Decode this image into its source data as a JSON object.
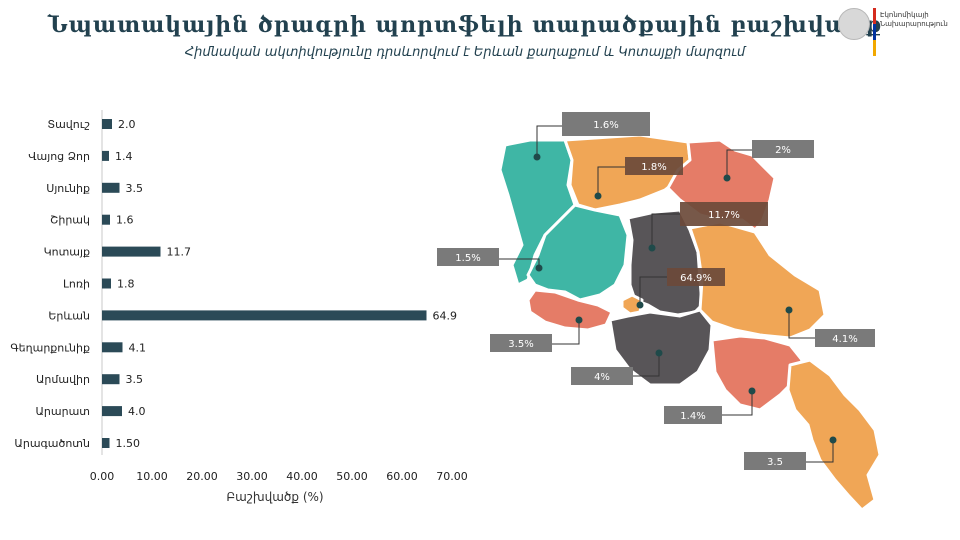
{
  "header": {
    "title": "Նպատակային ծրագրի պորտֆելի տարածքային բաշխվածք",
    "subtitle": "Հիմնական ակտիվությունը դրսևորվում է Երևան քաղաքում և Կոտայքի մարզում"
  },
  "logo": {
    "line1": "Էկոնոմիկայի",
    "line2": "Նախարարություն",
    "colors": [
      "#d52b1e",
      "#0033a0",
      "#f2a800"
    ]
  },
  "chart_data": [
    {
      "type": "bar",
      "orientation": "horizontal",
      "categories": [
        "Տավուշ",
        "Վայոց Ձոր",
        "Սյունիք",
        "Շիրակ",
        "Կոտայք",
        "Լոռի",
        "Երևան",
        "Գեղարքունիք",
        "Արմավիր",
        "Արարատ",
        "Արագածոտն"
      ],
      "values": [
        2.0,
        1.4,
        3.5,
        1.6,
        11.7,
        1.8,
        64.9,
        4.1,
        3.5,
        4.0,
        1.5
      ],
      "value_labels": [
        "2.0",
        "1.4",
        "3.5",
        "1.6",
        "11.7",
        "1.8",
        "64.9",
        "4.1",
        "3.5",
        "4.0",
        "1.50"
      ],
      "xlabel": "Բաշխվածք (%)",
      "xlim": [
        0,
        70
      ],
      "xticks": [
        "0.00",
        "10.00",
        "20.00",
        "30.00",
        "40.00",
        "50.00",
        "60.00",
        "70.00"
      ],
      "grid": false,
      "bar_color": "#2b4a57"
    },
    {
      "type": "map",
      "regions": [
        {
          "name": "Shirak",
          "label": "1.6%",
          "color": "#3fb6a5"
        },
        {
          "name": "Lori",
          "label": "1.8%",
          "color": "#f0a656"
        },
        {
          "name": "Tavush",
          "label": "2%",
          "color": "#e57c67"
        },
        {
          "name": "Kotayk",
          "label": "11.7%",
          "color": "#3fb6a5"
        },
        {
          "name": "Aragatsotn",
          "label": "1.5%",
          "color": "#585558"
        },
        {
          "name": "Yerevan",
          "label": "64.9%",
          "color": "#f0a656"
        },
        {
          "name": "Armavir",
          "label": "3.5%",
          "color": "#e57c67"
        },
        {
          "name": "Gegharkunik",
          "label": "4.1%",
          "color": "#f0a656"
        },
        {
          "name": "Ararat",
          "label": "4%",
          "color": "#585558"
        },
        {
          "name": "Vayots Dzor",
          "label": "1.4%",
          "color": "#e57c67"
        },
        {
          "name": "Syunik",
          "label": "3.5",
          "color": "#f0a656"
        }
      ],
      "label_box_color": "#7a7a7a",
      "dark_label_color": "#6b4a3a"
    }
  ]
}
